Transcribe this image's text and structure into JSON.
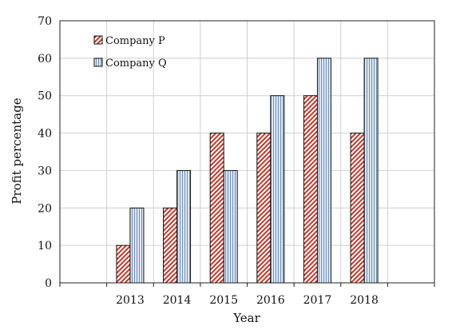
{
  "chart_data": {
    "type": "bar",
    "title": "",
    "xlabel": "Year",
    "ylabel": "Profit percentage",
    "ylim": [
      0,
      70
    ],
    "yticks": [
      0,
      10,
      20,
      30,
      40,
      50,
      60,
      70
    ],
    "grid": true,
    "legend_position": "top-left",
    "x_slots": [
      "",
      "2013",
      "2014",
      "2015",
      "2016",
      "2017",
      "2018",
      ""
    ],
    "categories": [
      "2013",
      "2014",
      "2015",
      "2016",
      "2017",
      "2018"
    ],
    "series": [
      {
        "name": "Company P",
        "values": [
          10,
          20,
          40,
          40,
          50,
          40
        ],
        "color": "#c0392b",
        "pattern": "diagonal-hatch"
      },
      {
        "name": "Company Q",
        "values": [
          20,
          30,
          30,
          50,
          60,
          60
        ],
        "color": "#b8cde6",
        "pattern": "vertical-hatch"
      }
    ]
  }
}
